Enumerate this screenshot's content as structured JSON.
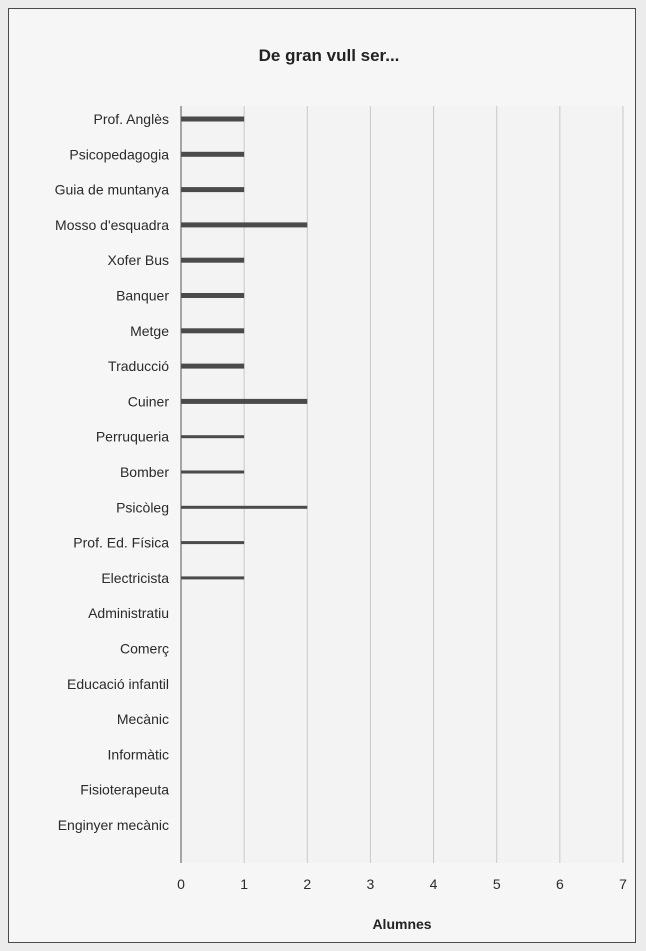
{
  "chart_data": {
    "type": "bar",
    "orientation": "horizontal",
    "title": "De gran vull ser...",
    "xlabel": "Alumnes",
    "ylabel": "",
    "xlim": [
      0,
      7
    ],
    "xticks": [
      "0",
      "1",
      "2",
      "3",
      "4",
      "5",
      "6",
      "7"
    ],
    "grid": true,
    "categories": [
      "Prof. Anglès",
      "Psicopedagogia",
      "Guia de muntanya",
      "Mosso d'esquadra",
      "Xofer Bus",
      "Banquer",
      "Metge",
      "Traducció",
      "Cuiner",
      "Perruqueria",
      "Bomber",
      "Psicòleg",
      "Prof. Ed. Física",
      "Electricista",
      "Administratiu",
      "Comerç",
      "Educació infantil",
      "Mecànic",
      "Informàtic",
      "Fisioterapeuta",
      "Enginyer mecànic"
    ],
    "values": [
      1,
      1,
      1,
      2,
      1,
      1,
      1,
      1,
      2,
      1,
      1,
      2,
      1,
      1,
      0,
      0,
      0,
      0,
      0,
      0,
      0
    ],
    "bar_color": "#4a4a4a"
  }
}
